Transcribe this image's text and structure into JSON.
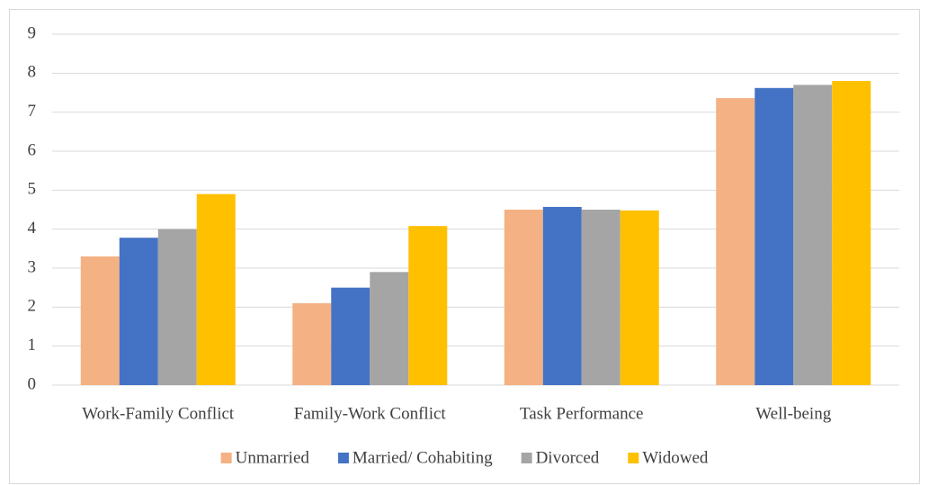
{
  "chart_data": {
    "type": "bar",
    "categories": [
      "Work-Family Conflict",
      "Family-Work Conflict",
      "Task Performance",
      "Well-being"
    ],
    "series": [
      {
        "name": "Unmarried",
        "color": "#f4b183",
        "values": [
          3.3,
          2.1,
          4.5,
          7.36
        ]
      },
      {
        "name": "Married/ Cohabiting",
        "color": "#4472c4",
        "values": [
          3.78,
          2.5,
          4.57,
          7.62
        ]
      },
      {
        "name": "Divorced",
        "color": "#a5a5a5",
        "values": [
          4.0,
          2.9,
          4.5,
          7.7
        ]
      },
      {
        "name": "Widowed",
        "color": "#ffc000",
        "values": [
          4.9,
          4.08,
          4.48,
          7.8
        ]
      }
    ],
    "ylim": [
      0,
      9
    ],
    "yticks": [
      0,
      1,
      2,
      3,
      4,
      5,
      6,
      7,
      8,
      9
    ],
    "grid": true,
    "legend": "bottom"
  }
}
